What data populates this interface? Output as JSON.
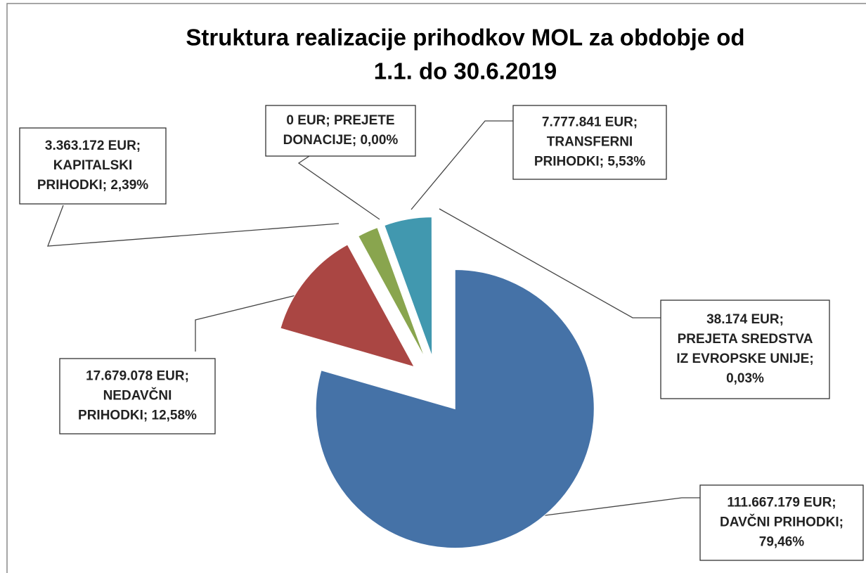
{
  "chart_data": {
    "type": "pie",
    "title": [
      "Struktura realizacije prihodkov MOL za obdobje od",
      "1.1. do 30.6.2019"
    ],
    "values": [
      111667179,
      17679078,
      3363172,
      0,
      7777841,
      38174
    ],
    "value_labels": [
      [
        "111.667.179 EUR;",
        "DAVČNI PRIHODKI;",
        "79,46%"
      ],
      [
        "17.679.078 EUR;",
        "NEDAVČNI",
        "PRIHODKI; 12,58%"
      ],
      [
        "3.363.172 EUR;",
        "KAPITALSKI",
        "PRIHODKI; 2,39%"
      ],
      [
        "0 EUR; PREJETE",
        "DONACIJE; 0,00%"
      ],
      [
        "7.777.841 EUR;",
        "TRANSFERNI",
        "PRIHODKI; 5,53%"
      ],
      [
        "38.174 EUR;",
        "PREJETA SREDSTVA",
        "IZ EVROPSKE UNIJE;",
        "0,03%"
      ]
    ],
    "colors": [
      "#4572a7",
      "#aa4643",
      "#89a54e",
      "#71588f",
      "#4198af",
      "#db843d"
    ]
  }
}
